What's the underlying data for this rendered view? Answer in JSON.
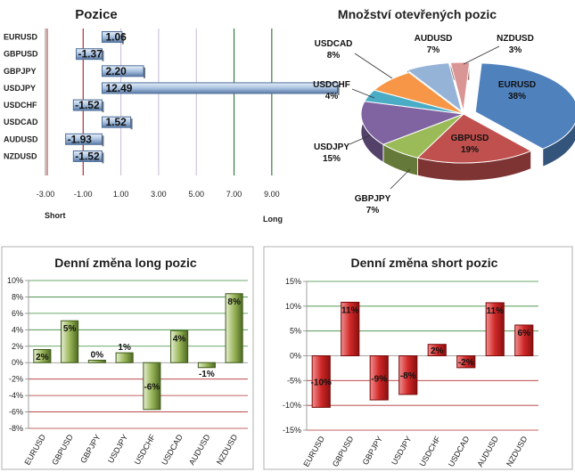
{
  "chart_data": [
    {
      "type": "bar",
      "orientation": "horizontal",
      "title": "Pozice",
      "categories": [
        "EURUSD",
        "GBPUSD",
        "GBPJPY",
        "USDJPY",
        "USDCHF",
        "USDCAD",
        "AUDUSD",
        "NZDUSD"
      ],
      "values": [
        1.06,
        -1.37,
        2.2,
        12.49,
        -1.52,
        1.52,
        -1.93,
        -1.52
      ],
      "data_labels": [
        "1.06",
        "-1.37",
        "2.20",
        "12.49",
        "-1.52",
        "1.52",
        "-1.93",
        "-1.52"
      ],
      "xticks": [
        "-3.00",
        "-1.00",
        "1.00",
        "3.00",
        "5.00",
        "7.00",
        "9.00"
      ],
      "xlim": [
        -3,
        10
      ],
      "left_label": "Short",
      "right_label": "Long",
      "colors": {
        "bar": "#9fb9d9",
        "bar_dark": "#4f6f99",
        "line_red": "#b03030",
        "line_green": "#3a7a3a",
        "grid": "#c8b8d8"
      }
    },
    {
      "type": "pie",
      "title": "Množství otevřených pozic",
      "slices": [
        {
          "label": "EURUSD",
          "pct_label": "38%",
          "value": 38,
          "color": "#4f81bd"
        },
        {
          "label": "GBPUSD",
          "pct_label": "19%",
          "value": 19,
          "color": "#c0504d"
        },
        {
          "label": "GBPJPY",
          "pct_label": "7%",
          "value": 7,
          "color": "#9bbb59"
        },
        {
          "label": "USDJPY",
          "pct_label": "15%",
          "value": 15,
          "color": "#8064a2"
        },
        {
          "label": "USDCHF",
          "pct_label": "4%",
          "value": 4,
          "color": "#4bacc6"
        },
        {
          "label": "USDCAD",
          "pct_label": "8%",
          "value": 8,
          "color": "#f79646"
        },
        {
          "label": "AUDUSD",
          "pct_label": "7%",
          "value": 7,
          "color": "#95b3d7"
        },
        {
          "label": "NZDUSD",
          "pct_label": "3%",
          "value": 3,
          "color": "#d99694"
        }
      ]
    },
    {
      "type": "bar",
      "title": "Denní změna long pozic",
      "categories": [
        "EURUSD",
        "GBPUSD",
        "GBPJPY",
        "USDJPY",
        "USDCHF",
        "USDCAD",
        "AUDUSD",
        "NZDUSD"
      ],
      "values": [
        1.6,
        5.1,
        0.3,
        1.2,
        -5.7,
        3.9,
        -0.6,
        8.4
      ],
      "data_labels": [
        "2%",
        "5%",
        "0%",
        "1%",
        "-6%",
        "4%",
        "-1%",
        "8%"
      ],
      "yticks": [
        "10%",
        "8%",
        "6%",
        "4%",
        "2%",
        "0%",
        "-2%",
        "-4%",
        "-6%",
        "-8%"
      ],
      "ylim": [
        -8,
        10
      ],
      "colors": {
        "bar": "#7a9a3a",
        "bar_light": "#dfe9c8",
        "grid_pos": "#3a8a3a",
        "grid_neg": "#b03030"
      }
    },
    {
      "type": "bar",
      "title": "Denní změna short pozic",
      "categories": [
        "EURUSD",
        "GBPUSD",
        "GBPJPY",
        "USDJPY",
        "USDCHF",
        "USDCAD",
        "AUDUSD",
        "NZDUSD"
      ],
      "values": [
        -10.4,
        10.8,
        -8.9,
        -7.8,
        2.3,
        -2.4,
        10.7,
        6.2
      ],
      "data_labels": [
        "-10%",
        "11%",
        "-9%",
        "-8%",
        "2%",
        "-2%",
        "11%",
        "6%"
      ],
      "yticks": [
        "15%",
        "10%",
        "5%",
        "0%",
        "-5%",
        "-10%",
        "-15%"
      ],
      "ylim": [
        -15,
        15
      ],
      "colors": {
        "bar": "#d23a3a",
        "bar_dark": "#8a1a1a",
        "grid_pos": "#3a8a3a",
        "grid_neg": "#b03030"
      }
    }
  ]
}
